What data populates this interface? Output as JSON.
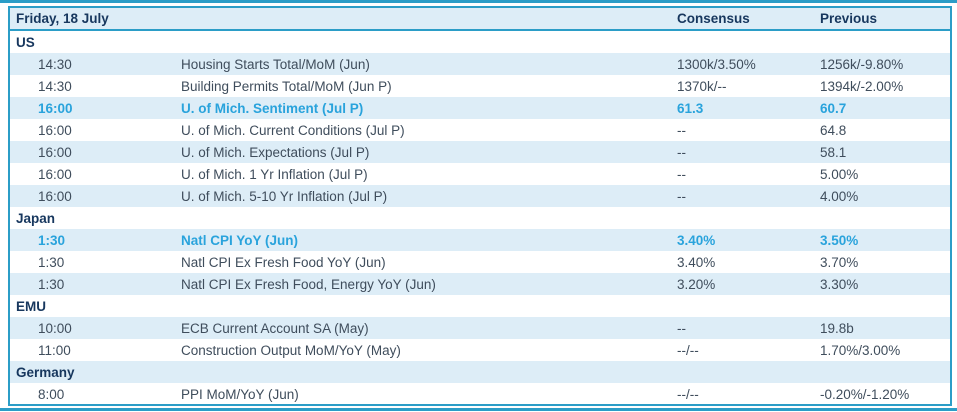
{
  "colors": {
    "accent_border": "#2b9dc7",
    "row_alt_bg": "#ddedf7",
    "header_text": "#17375e",
    "body_text": "#3f4d5c",
    "highlight_text": "#29a3dc",
    "page_bg": "#ffffff"
  },
  "table": {
    "header": {
      "date_label": "Friday, 18 July",
      "consensus_label": "Consensus",
      "previous_label": "Previous"
    },
    "sections": [
      {
        "name": "US",
        "rows": [
          {
            "time": "14:30",
            "event": "Housing Starts Total/MoM (Jun)",
            "consensus": "1300k/3.50%",
            "previous": "1256k/-9.80%",
            "highlight": false
          },
          {
            "time": "14:30",
            "event": "Building Permits Total/MoM (Jun P)",
            "consensus": "1370k/--",
            "previous": "1394k/-2.00%",
            "highlight": false
          },
          {
            "time": "16:00",
            "event": "U. of Mich. Sentiment (Jul P)",
            "consensus": "61.3",
            "previous": "60.7",
            "highlight": true
          },
          {
            "time": "16:00",
            "event": "U. of Mich. Current Conditions (Jul P)",
            "consensus": "--",
            "previous": "64.8",
            "highlight": false
          },
          {
            "time": "16:00",
            "event": "U. of Mich. Expectations (Jul P)",
            "consensus": "--",
            "previous": "58.1",
            "highlight": false
          },
          {
            "time": "16:00",
            "event": "U. of Mich. 1 Yr Inflation (Jul P)",
            "consensus": "--",
            "previous": "5.00%",
            "highlight": false
          },
          {
            "time": "16:00",
            "event": "U. of Mich. 5-10 Yr Inflation (Jul P)",
            "consensus": "--",
            "previous": "4.00%",
            "highlight": false
          }
        ]
      },
      {
        "name": "Japan",
        "rows": [
          {
            "time": "1:30",
            "event": "Natl CPI YoY (Jun)",
            "consensus": "3.40%",
            "previous": "3.50%",
            "highlight": true
          },
          {
            "time": "1:30",
            "event": "Natl CPI Ex Fresh Food YoY (Jun)",
            "consensus": "3.40%",
            "previous": "3.70%",
            "highlight": false
          },
          {
            "time": "1:30",
            "event": "Natl CPI Ex Fresh Food, Energy YoY (Jun)",
            "consensus": "3.20%",
            "previous": "3.30%",
            "highlight": false
          }
        ]
      },
      {
        "name": "EMU",
        "rows": [
          {
            "time": "10:00",
            "event": "ECB Current Account SA (May)",
            "consensus": "--",
            "previous": "19.8b",
            "highlight": false
          },
          {
            "time": "11:00",
            "event": "Construction Output MoM/YoY (May)",
            "consensus": "--/--",
            "previous": "1.70%/3.00%",
            "highlight": false
          }
        ]
      },
      {
        "name": "Germany",
        "rows": [
          {
            "time": "8:00",
            "event": "PPI MoM/YoY (Jun)",
            "consensus": "--/--",
            "previous": "-0.20%/-1.20%",
            "highlight": false
          }
        ]
      }
    ]
  }
}
